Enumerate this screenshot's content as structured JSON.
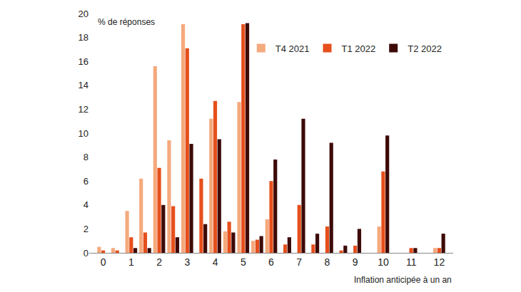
{
  "chart_data": {
    "type": "bar",
    "ylabel": "% de réponses",
    "xlabel": "Inflation anticipée à un an",
    "x": [
      0,
      0.5,
      1,
      1.5,
      2,
      2.5,
      3,
      3.5,
      4,
      4.5,
      5,
      5.5,
      6,
      6.5,
      7,
      7.5,
      8,
      8.5,
      9,
      9.5,
      10,
      10.5,
      11,
      11.5,
      12
    ],
    "series": [
      {
        "name": "T4 2021",
        "color": "#f4a97e",
        "values": [
          0.5,
          0.4,
          3.5,
          6.2,
          15.6,
          9.4,
          19.1,
          0,
          11.2,
          1.8,
          12.6,
          1.0,
          2.8,
          0,
          0,
          0,
          0,
          0,
          0,
          0,
          2.2,
          0,
          0,
          0,
          0.4
        ]
      },
      {
        "name": "T1 2022",
        "color": "#e64f1c",
        "values": [
          0.2,
          0.2,
          1.3,
          1.7,
          7.1,
          3.9,
          17.1,
          6.2,
          12.7,
          2.6,
          19.1,
          1.1,
          6.0,
          0.7,
          4.0,
          0.7,
          2.2,
          0.2,
          0.6,
          0,
          6.8,
          0,
          0.4,
          0,
          0.4
        ]
      },
      {
        "name": "T2 2022",
        "color": "#3d0a08",
        "values": [
          0,
          0,
          0.4,
          0.4,
          4.0,
          1.3,
          9.1,
          2.4,
          9.5,
          1.7,
          19.2,
          1.4,
          7.8,
          1.3,
          11.2,
          1.6,
          9.2,
          0.6,
          2.0,
          0,
          9.8,
          0,
          0.4,
          0,
          1.6
        ]
      }
    ],
    "xlim": [
      -0.5,
      12.5
    ],
    "xticks": [
      0,
      1,
      2,
      3,
      4,
      5,
      6,
      7,
      8,
      9,
      10,
      11,
      12
    ],
    "ylim": [
      0,
      20
    ],
    "yticks": [
      0,
      2,
      4,
      6,
      8,
      10,
      12,
      14,
      16,
      18,
      20
    ],
    "grid": false,
    "legend": "top-right"
  }
}
